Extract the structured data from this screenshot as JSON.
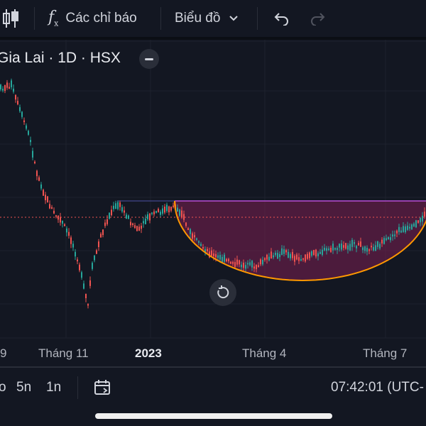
{
  "toolbar": {
    "indicators_label": "Các chỉ báo",
    "chart_type_label": "Biểu đồ"
  },
  "legend": {
    "title": "Gia Lai · 1D · HSX"
  },
  "x_axis": {
    "labels": [
      {
        "text": "9",
        "bold": false
      },
      {
        "text": "Tháng 11",
        "bold": false
      },
      {
        "text": "2023",
        "bold": true
      },
      {
        "text": "Tháng 4",
        "bold": false
      },
      {
        "text": "Tháng 7",
        "bold": false
      }
    ]
  },
  "bottombar": {
    "range_partial": "o",
    "range_5y": "5n",
    "range_1y": "1n",
    "clock": "07:42:01 (UTC-"
  },
  "colors": {
    "background": "#131722",
    "up": "#26a69a",
    "down": "#ef5350",
    "pattern_fill": "#7b1f52",
    "pattern_top_line": "#b84fd6",
    "arc": "#ff9800",
    "price_line": "#ef5350"
  },
  "icons": [
    "candlestick-icon",
    "function-icon",
    "chevron-down-icon",
    "undo-icon",
    "redo-icon",
    "minus-icon",
    "reset-icon",
    "date-range-icon"
  ]
}
